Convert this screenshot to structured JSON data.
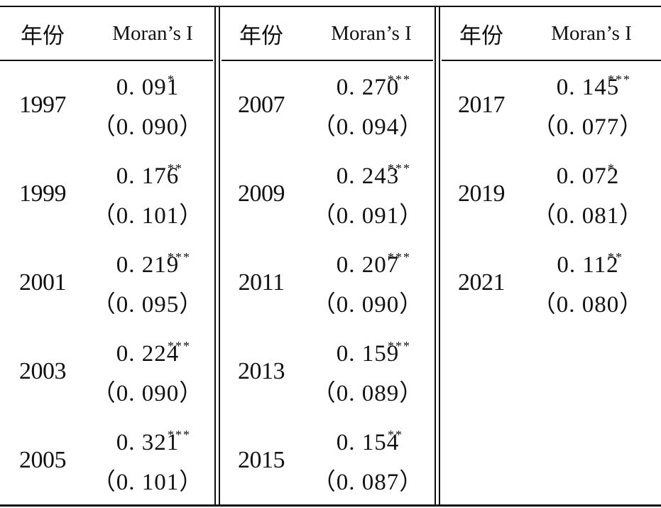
{
  "table": {
    "headers": [
      {
        "year": "年份",
        "moran": "Moran’s I"
      },
      {
        "year": "年份",
        "moran": "Moran’s I"
      },
      {
        "year": "年份",
        "moran": "Moran’s I"
      }
    ],
    "groups": [
      {
        "rows": [
          {
            "year": "1997",
            "value": "0. 091",
            "stars": "*",
            "se": "（0. 090）"
          },
          {
            "year": "1999",
            "value": "0. 176",
            "stars": "**",
            "se": "（0. 101）"
          },
          {
            "year": "2001",
            "value": "0. 219",
            "stars": "***",
            "se": "（0. 095）"
          },
          {
            "year": "2003",
            "value": "0. 224",
            "stars": "***",
            "se": "（0. 090）"
          },
          {
            "year": "2005",
            "value": "0. 321",
            "stars": "***",
            "se": "（0. 101）"
          }
        ]
      },
      {
        "rows": [
          {
            "year": "2007",
            "value": "0. 270",
            "stars": "***",
            "se": "（0. 094）"
          },
          {
            "year": "2009",
            "value": "0. 243",
            "stars": "***",
            "se": "（0. 091）"
          },
          {
            "year": "2011",
            "value": "0. 207",
            "stars": "***",
            "se": "（0. 090）"
          },
          {
            "year": "2013",
            "value": "0. 159",
            "stars": "***",
            "se": "（0. 089）"
          },
          {
            "year": "2015",
            "value": "0. 154",
            "stars": "**",
            "se": "（0. 087）"
          }
        ]
      },
      {
        "rows": [
          {
            "year": "2017",
            "value": "0. 145",
            "stars": "***",
            "se": "（0. 077）"
          },
          {
            "year": "2019",
            "value": "0. 072",
            "stars": "*",
            "se": "（0. 081）"
          },
          {
            "year": "2021",
            "value": "0. 112",
            "stars": "**",
            "se": "（0. 080）"
          }
        ]
      }
    ]
  }
}
